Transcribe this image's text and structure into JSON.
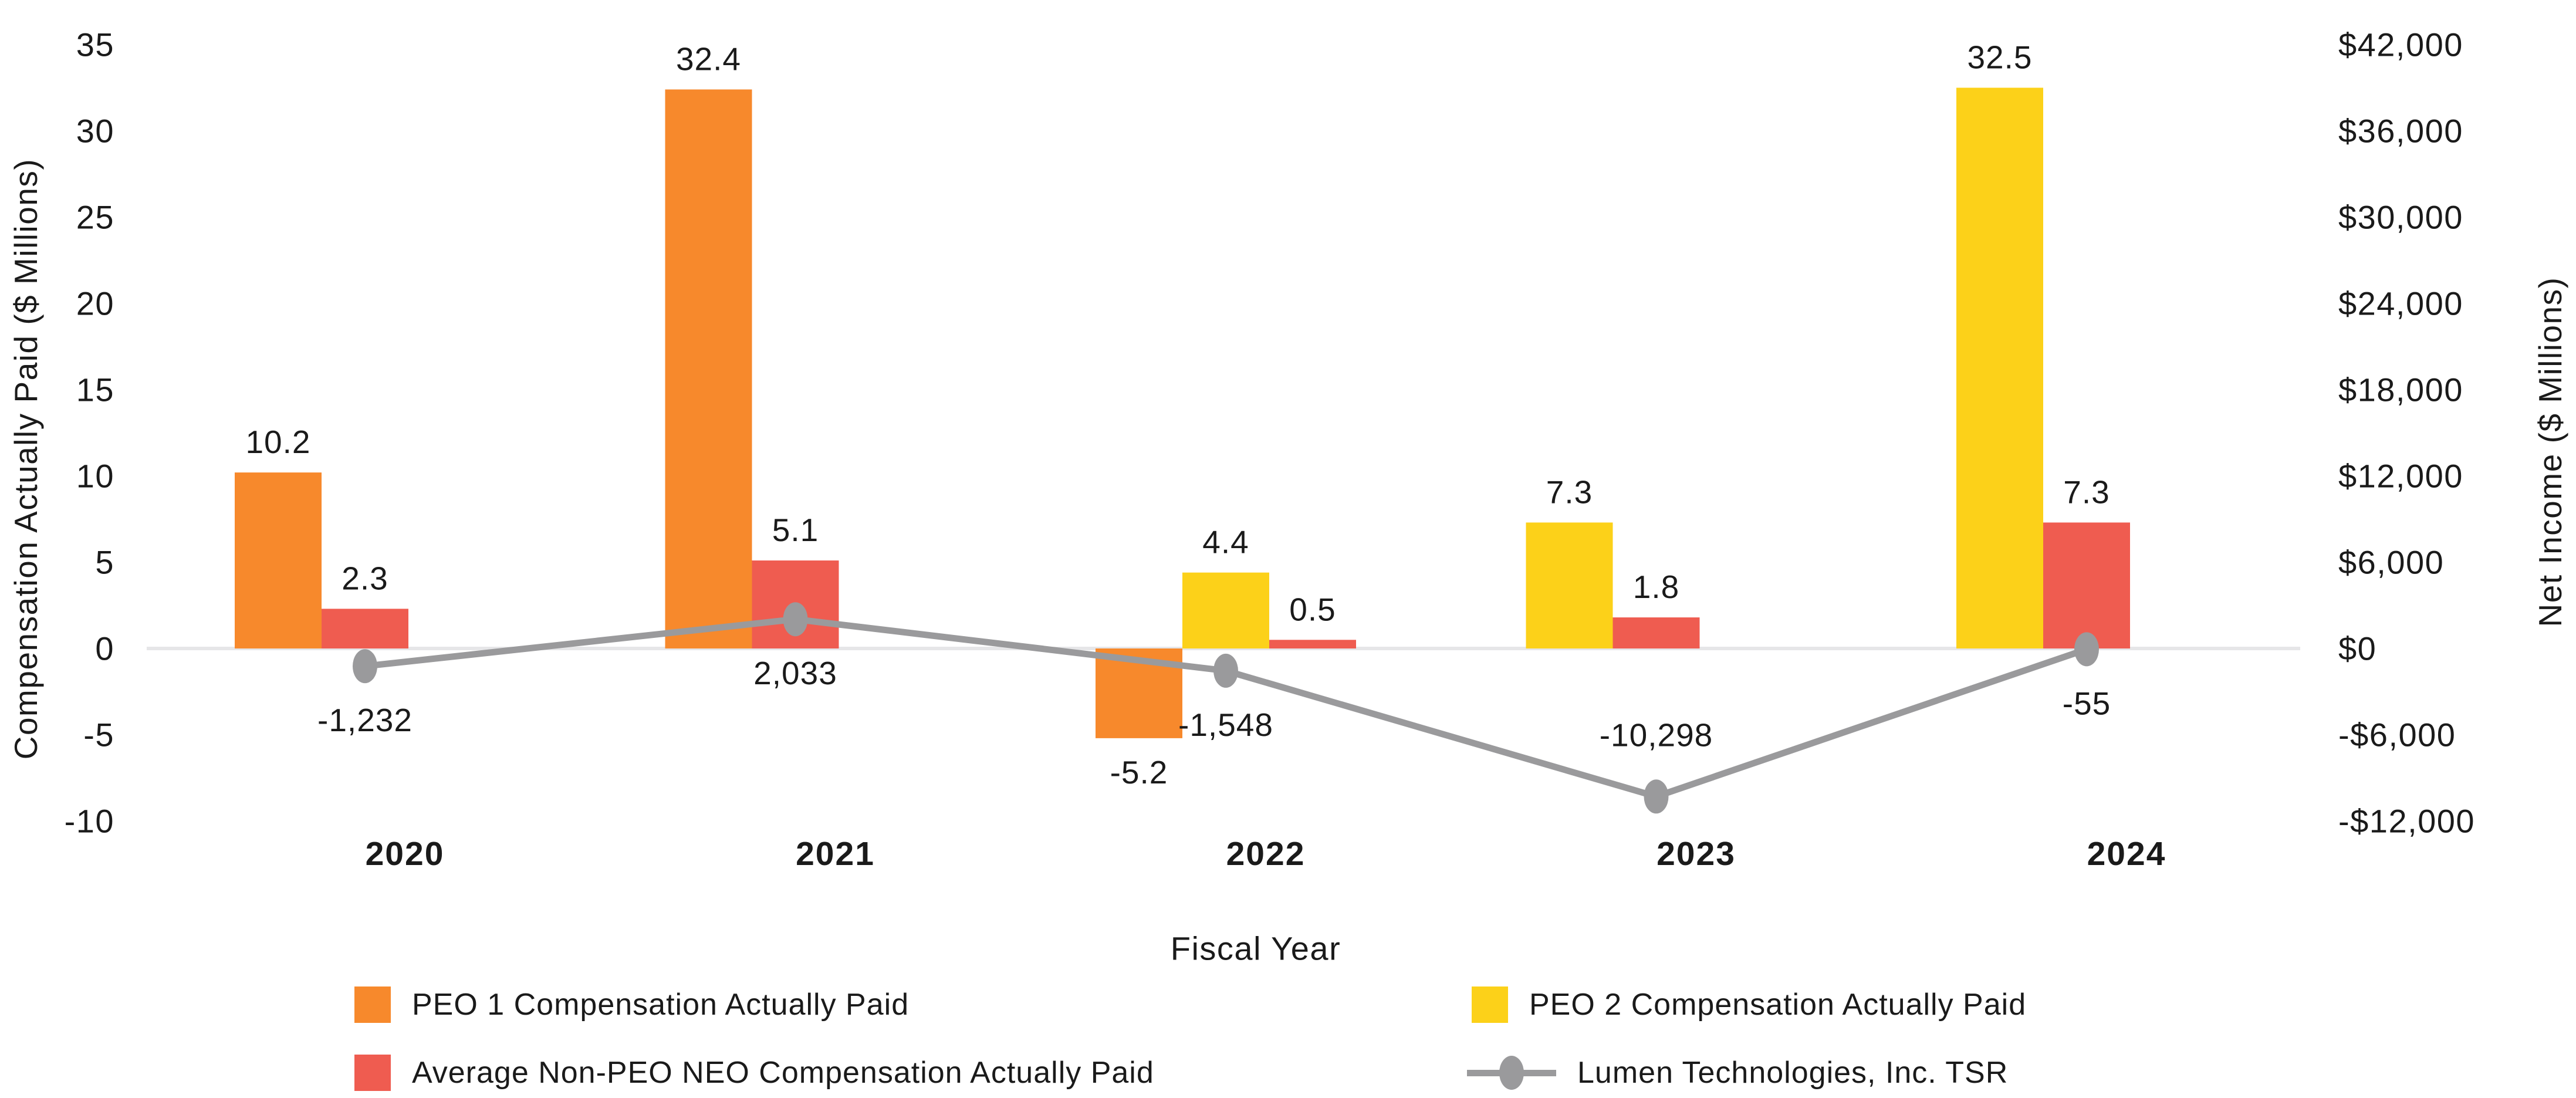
{
  "colors": {
    "background": "#FFFFFF",
    "text": "#1A1A1A",
    "zero_line": "#E6E6E8",
    "peo1_orange": "#F7892C",
    "peo2_yellow": "#FCD119",
    "avg_neo_red": "#EF5C50",
    "tsr_gray": "#9A9A9C"
  },
  "chart_data": {
    "type": "bar",
    "subtype": "grouped-bar-with-line-dual-axis",
    "categories": [
      "2020",
      "2021",
      "2022",
      "2023",
      "2024"
    ],
    "xlabel": "Fiscal Year",
    "grid": "off",
    "legend_position": "bottom",
    "bar_series": [
      {
        "name": "PEO 1 Compensation Actually Paid",
        "color": "#F7892C",
        "axis": "left",
        "values": [
          10.2,
          32.4,
          -5.2,
          null,
          null
        ],
        "labels": [
          "10.2",
          "32.4",
          "-5.2",
          null,
          null
        ]
      },
      {
        "name": "PEO 2 Compensation Actually Paid",
        "color": "#FCD119",
        "axis": "left",
        "values": [
          null,
          null,
          4.4,
          7.3,
          32.5
        ],
        "labels": [
          null,
          null,
          "4.4",
          "7.3",
          "32.5"
        ]
      },
      {
        "name": "Average Non-PEO NEO Compensation Actually Paid",
        "color": "#EF5C50",
        "axis": "left",
        "values": [
          2.3,
          5.1,
          0.5,
          1.8,
          7.3
        ],
        "labels": [
          "2.3",
          "5.1",
          "0.5",
          "1.8",
          "7.3"
        ]
      }
    ],
    "line_series": {
      "name": "Lumen Technologies, Inc. TSR",
      "color": "#9A9A9C",
      "axis": "right",
      "values": [
        -1232,
        2033,
        -1548,
        -10298,
        -55
      ],
      "labels": [
        "-1,232",
        "2,033",
        "-1,548",
        "-10,298",
        "-55"
      ],
      "label_positions": [
        "below",
        "below",
        "below",
        "above",
        "below"
      ]
    },
    "left_axis": {
      "title": "Compensation Actually Paid ($ Millions)",
      "ticks": [
        "35",
        "30",
        "25",
        "20",
        "15",
        "10",
        "5",
        "0",
        "-5",
        "-10"
      ],
      "tick_values": [
        35,
        30,
        25,
        20,
        15,
        10,
        5,
        0,
        -5,
        -10
      ],
      "range": [
        -10,
        35
      ]
    },
    "right_axis": {
      "title": "Net Income ($ Millions)",
      "ticks": [
        "$42,000",
        "$36,000",
        "$30,000",
        "$24,000",
        "$18,000",
        "$12,000",
        "$6,000",
        "$0",
        "-$6,000",
        "-$12,000"
      ],
      "tick_values": [
        42000,
        36000,
        30000,
        24000,
        18000,
        12000,
        6000,
        0,
        -6000,
        -12000
      ],
      "range": [
        -12000,
        42000
      ]
    }
  },
  "legend": {
    "items": [
      {
        "label": "PEO 1 Compensation Actually Paid",
        "marker": "square",
        "color": "#F7892C"
      },
      {
        "label": "PEO 2 Compensation Actually Paid",
        "marker": "square",
        "color": "#FCD119"
      },
      {
        "label": "Average Non-PEO NEO Compensation Actually Paid",
        "marker": "square",
        "color": "#EF5C50"
      },
      {
        "label": "Lumen Technologies, Inc. TSR",
        "marker": "line-dot",
        "color": "#9A9A9C"
      }
    ]
  }
}
